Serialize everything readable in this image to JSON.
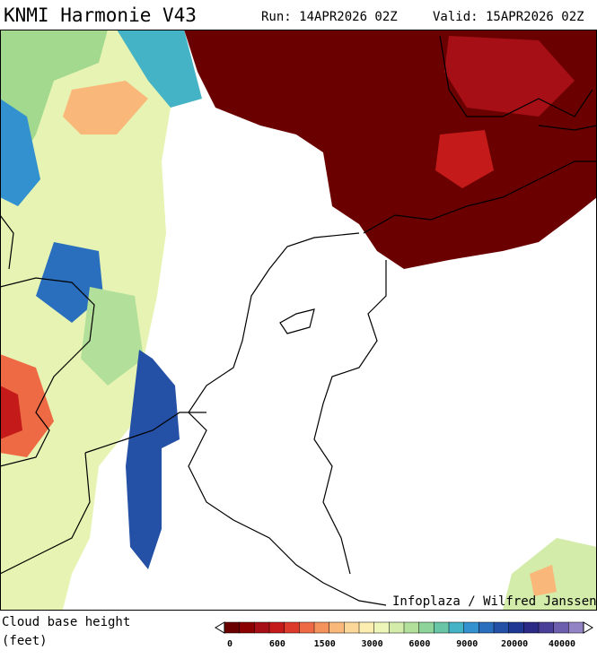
{
  "header": {
    "title": "KNMI Harmonie V43",
    "run": "Run: 14APR2026 02Z",
    "valid": "Valid: 15APR2026 02Z"
  },
  "map": {
    "credit": "Infoplaza / Wilfred Janssen"
  },
  "legend": {
    "title": "Cloud base height",
    "unit": "(feet)",
    "labels": [
      0,
      600,
      1500,
      3000,
      6000,
      9000,
      20000,
      40000
    ],
    "colors": [
      "#6b0000",
      "#8b0000",
      "#a50f15",
      "#c41a1a",
      "#dc3b2b",
      "#ee6a45",
      "#f5935d",
      "#f9b77a",
      "#fbd79a",
      "#fbeeb0",
      "#eef5b8",
      "#d3ecaa",
      "#b2e09a",
      "#8ed49a",
      "#68c6a6",
      "#45b3c6",
      "#3391cf",
      "#2a6fbd",
      "#2450a6",
      "#1e3893",
      "#2b2a86",
      "#4a3f98",
      "#6d5fae",
      "#9284c4"
    ]
  }
}
